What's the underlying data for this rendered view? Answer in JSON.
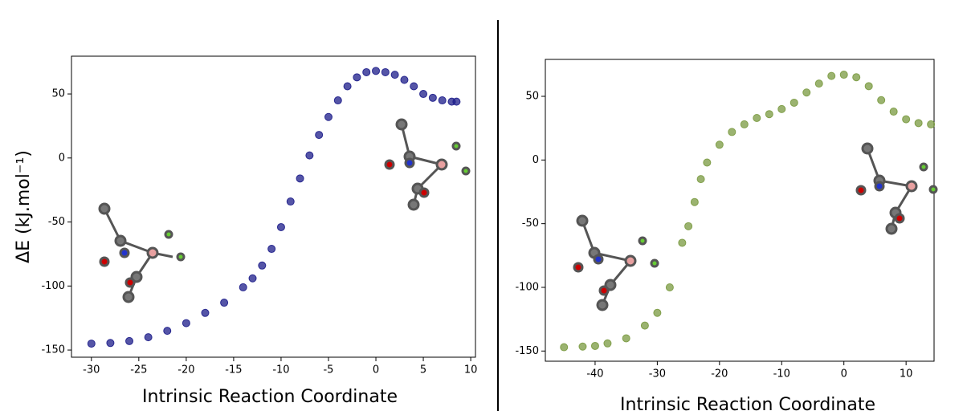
{
  "chart_data": [
    {
      "type": "scatter",
      "x_label": "Intrinsic Reaction Coordinate",
      "y_label": "ΔE (kJ.mol⁻¹)",
      "xlim": [
        -32.1,
        10.5
      ],
      "ylim": [
        -155.6,
        79.5
      ],
      "xticks": [
        -30,
        -25,
        -20,
        -15,
        -10,
        -5,
        0,
        5,
        10
      ],
      "yticks": [
        -150,
        -100,
        -50,
        0,
        50
      ],
      "series": [
        {
          "color": "#1c1c8a",
          "x": [
            -30,
            -28,
            -26,
            -24,
            -22,
            -20,
            -18,
            -16,
            -14,
            -13,
            -12,
            -11,
            -10,
            -9,
            -8,
            -7,
            -6,
            -5,
            -4,
            -3,
            -2,
            -1,
            0,
            1,
            2,
            3,
            4,
            5,
            6,
            7,
            8,
            8.5
          ],
          "values": [
            -145,
            -144.5,
            -143,
            -140,
            -135,
            -129,
            -121,
            -113,
            -101,
            -94,
            -84,
            -71,
            -54,
            -34,
            -16,
            2,
            18,
            32,
            45,
            56,
            63,
            67,
            68,
            67,
            65,
            61,
            56,
            50,
            47,
            45,
            44,
            44
          ]
        }
      ]
    },
    {
      "type": "scatter",
      "x_label": "Intrinsic Reaction Coordinate",
      "xlim": [
        -48,
        14.5
      ],
      "ylim": [
        -158,
        79
      ],
      "xticks": [
        -40,
        -30,
        -20,
        -10,
        0,
        10
      ],
      "yticks": [
        -150,
        -100,
        -50,
        0,
        50
      ],
      "series": [
        {
          "color": "#7a9a40",
          "x": [
            -45,
            -42,
            -40,
            -38,
            -35,
            -32,
            -30,
            -28,
            -26,
            -25,
            -24,
            -23,
            -22,
            -20,
            -18,
            -16,
            -14,
            -12,
            -10,
            -8,
            -6,
            -4,
            -2,
            0,
            2,
            4,
            6,
            8,
            10,
            12,
            14
          ],
          "values": [
            -147,
            -146.5,
            -146,
            -144,
            -140,
            -130,
            -120,
            -100,
            -65,
            -52,
            -33,
            -15,
            -2,
            12,
            22,
            28,
            33,
            36,
            40,
            45,
            53,
            60,
            66,
            67,
            65,
            58,
            47,
            38,
            32,
            29,
            28
          ]
        }
      ]
    }
  ]
}
